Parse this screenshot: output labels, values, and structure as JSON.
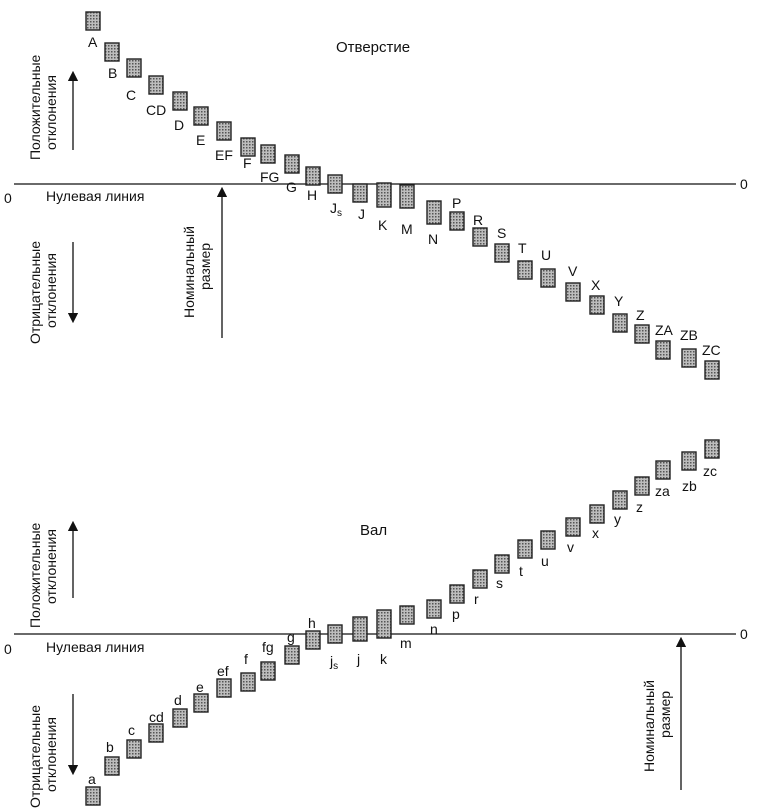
{
  "top": {
    "title": "Отверстие",
    "zero_line_label": "Нулевая линия",
    "zero_left": "0",
    "zero_right": "0",
    "positive_label": [
      "Положительные",
      "отклонения"
    ],
    "negative_label": [
      "Отрицательные",
      "отклонения"
    ],
    "nominal_label": [
      "Номинальный",
      "размер"
    ],
    "deviations": [
      {
        "label": "A"
      },
      {
        "label": "B"
      },
      {
        "label": "C"
      },
      {
        "label": "CD"
      },
      {
        "label": "D"
      },
      {
        "label": "E"
      },
      {
        "label": "EF"
      },
      {
        "label": "F"
      },
      {
        "label": "FG"
      },
      {
        "label": "G"
      },
      {
        "label": "H"
      },
      {
        "label": "J",
        "sub": "s"
      },
      {
        "label": "J"
      },
      {
        "label": "K"
      },
      {
        "label": "M"
      },
      {
        "label": "N"
      },
      {
        "label": "P"
      },
      {
        "label": "R"
      },
      {
        "label": "S"
      },
      {
        "label": "T"
      },
      {
        "label": "U"
      },
      {
        "label": "V"
      },
      {
        "label": "X"
      },
      {
        "label": "Y"
      },
      {
        "label": "Z"
      },
      {
        "label": "ZA"
      },
      {
        "label": "ZB"
      },
      {
        "label": "ZC"
      }
    ]
  },
  "bottom": {
    "title": "Вал",
    "zero_line_label": "Нулевая линия",
    "zero_left": "0",
    "zero_right": "0",
    "positive_label": [
      "Положительные",
      "отклонения"
    ],
    "negative_label": [
      "Отрицательные",
      "отклонения"
    ],
    "nominal_label": [
      "Номинальный",
      "размер"
    ],
    "deviations": [
      {
        "label": "a"
      },
      {
        "label": "b"
      },
      {
        "label": "c"
      },
      {
        "label": "cd"
      },
      {
        "label": "d"
      },
      {
        "label": "e"
      },
      {
        "label": "ef"
      },
      {
        "label": "f"
      },
      {
        "label": "fg"
      },
      {
        "label": "g"
      },
      {
        "label": "h"
      },
      {
        "label": "j",
        "sub": "s"
      },
      {
        "label": "j"
      },
      {
        "label": "k"
      },
      {
        "label": "m"
      },
      {
        "label": "n"
      },
      {
        "label": "p"
      },
      {
        "label": "r"
      },
      {
        "label": "s"
      },
      {
        "label": "t"
      },
      {
        "label": "u"
      },
      {
        "label": "v"
      },
      {
        "label": "x"
      },
      {
        "label": "y"
      },
      {
        "label": "z"
      },
      {
        "label": "za"
      },
      {
        "label": "zb"
      },
      {
        "label": "zc"
      }
    ]
  },
  "colors": {
    "line": "#111111",
    "box_fill": "#9a9a9a",
    "box_stroke": "#222222"
  }
}
